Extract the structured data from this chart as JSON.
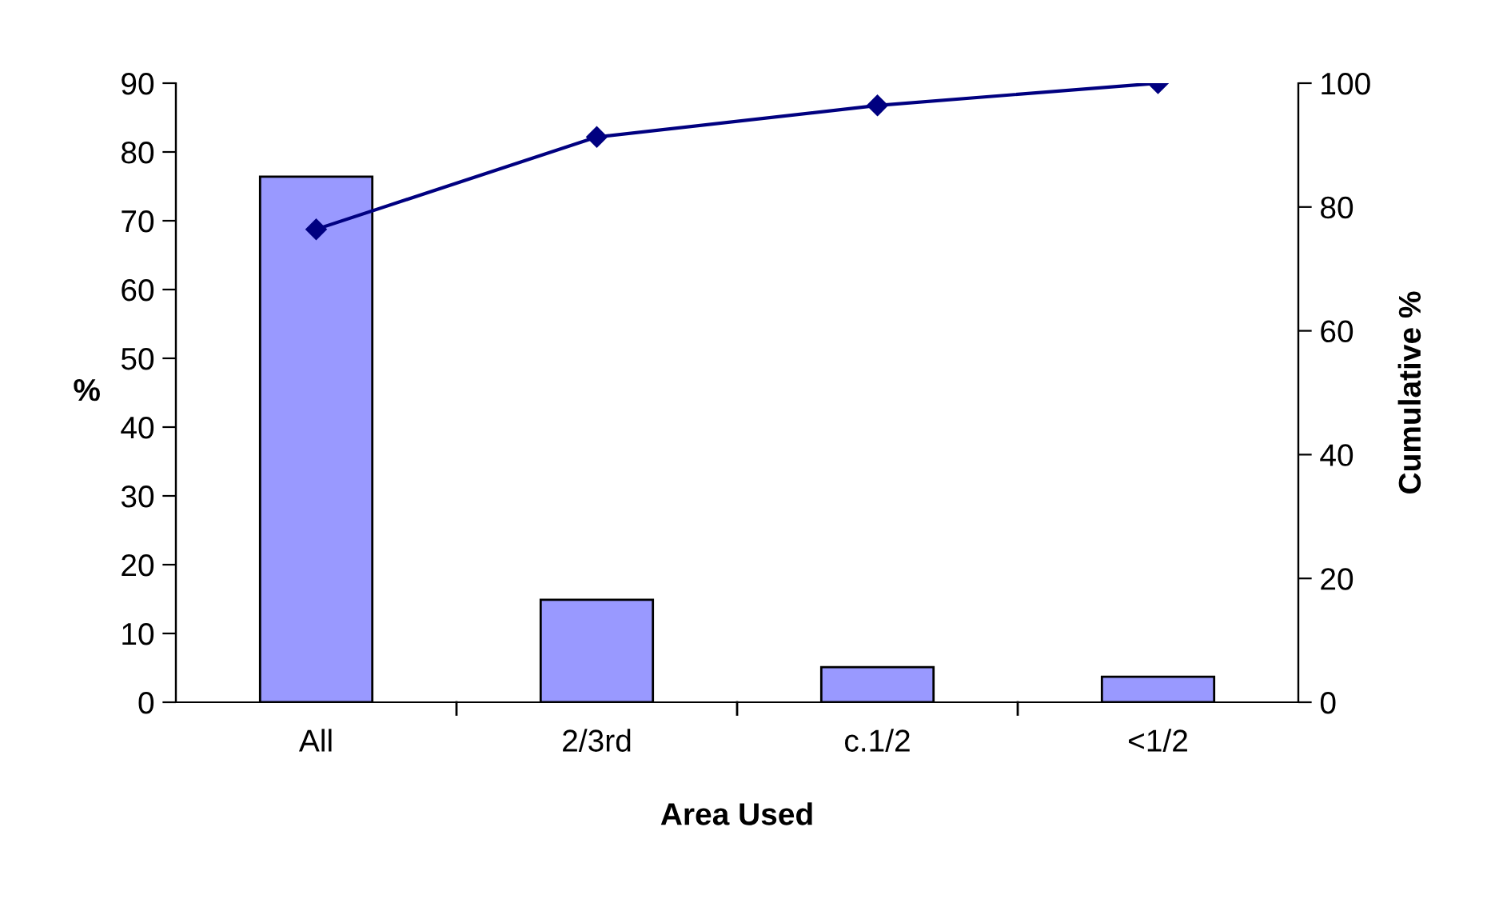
{
  "chart_data": {
    "type": "bar",
    "xlabel": "Area Used",
    "ylabel": "%",
    "y2label": "Cumulative %",
    "categories": [
      "All",
      "2/3rd",
      "c.1/2",
      "<1/2"
    ],
    "series": [
      {
        "color": "#9999ff",
        "values": [
          76.4,
          14.9,
          5.1,
          3.7
        ]
      },
      {
        "type": "line",
        "axis": "y2",
        "color": "#000080",
        "marker": "diamond",
        "values": [
          76.4,
          91.3,
          96.4,
          100
        ]
      }
    ],
    "ylim": [
      0,
      90
    ],
    "yticks": [
      0,
      10,
      20,
      30,
      40,
      50,
      60,
      70,
      80,
      90
    ],
    "y2lim": [
      0,
      100
    ],
    "y2ticks": [
      0,
      20,
      40,
      60,
      80,
      100
    ],
    "grid": false
  }
}
